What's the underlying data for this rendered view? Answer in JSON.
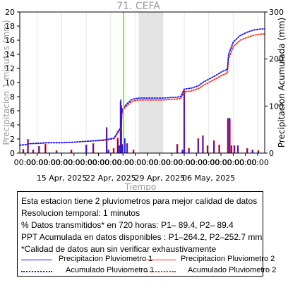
{
  "chart_data": {
    "type": "bar",
    "title": "71. CEFA",
    "xlabel": "Tiempo",
    "ylabel_left": "Precipitacion 1 minutos (mm)",
    "ylabel_right": "Precipitacion Acumulada (mm)",
    "ylim_left": [
      0,
      20
    ],
    "ylim_right": [
      0,
      300
    ],
    "yticks_left": [
      "0",
      "2",
      "4",
      "6",
      "8",
      "10",
      "12",
      "14",
      "16",
      "18",
      "20"
    ],
    "yticks_right": [
      "0",
      "100",
      "200",
      "300"
    ],
    "xlim": [
      "2025-04-09 00:00",
      "2025-05-14 00:00"
    ],
    "xtick_time_label": "00:00",
    "xtick_date_labels": [
      "15 Apr, 2025",
      "22 Apr, 2025",
      "29 Apr, 2025",
      "06 May, 2025"
    ],
    "marker_line": {
      "time": "2025-04-23 20:00",
      "color": "#7cff00"
    },
    "gap_region": {
      "start": "2025-04-26 00:00",
      "end": "2025-04-29 12:00",
      "color": "#e4e4e4"
    },
    "series": [
      {
        "name": "Precipitacion Pluviometro 1",
        "axis": "left",
        "color": "#1010ff",
        "bars": [
          [
            "2025-04-09 12:00",
            0.4
          ],
          [
            "2025-04-10 04:00",
            1.9
          ],
          [
            "2025-04-10 22:00",
            0.4
          ],
          [
            "2025-04-11 18:00",
            1.0
          ],
          [
            "2025-04-12 16:00",
            1.2
          ],
          [
            "2025-04-14 06:00",
            0.3
          ],
          [
            "2025-04-16 09:00",
            0.4
          ],
          [
            "2025-04-18 12:00",
            1.1
          ],
          [
            "2025-04-19 12:00",
            1.3
          ],
          [
            "2025-04-21 10:00",
            3.7
          ],
          [
            "2025-04-21 16:00",
            0.4
          ],
          [
            "2025-04-22 10:00",
            0.6
          ],
          [
            "2025-04-23 00:00",
            2.0
          ],
          [
            "2025-04-23 05:00",
            1.0
          ],
          [
            "2025-04-23 10:00",
            7.6
          ],
          [
            "2025-04-23 12:00",
            6.8
          ],
          [
            "2025-04-23 16:00",
            1.2
          ],
          [
            "2025-04-24 00:00",
            2.1
          ],
          [
            "2025-04-24 08:00",
            1.3
          ],
          [
            "2025-04-25 06:00",
            0.4
          ],
          [
            "2025-05-01 12:00",
            1.2
          ],
          [
            "2025-05-02 06:00",
            0.4
          ],
          [
            "2025-05-02 12:00",
            8.8
          ],
          [
            "2025-05-03 04:00",
            0.6
          ],
          [
            "2025-05-04 12:00",
            2.0
          ],
          [
            "2025-05-05 04:00",
            2.4
          ],
          [
            "2025-05-05 20:00",
            1.0
          ],
          [
            "2025-05-06 18:00",
            1.7
          ],
          [
            "2025-05-07 12:00",
            1.1
          ],
          [
            "2025-05-08 18:00",
            5.0
          ],
          [
            "2025-05-09 00:00",
            5.0
          ],
          [
            "2025-05-09 06:00",
            1.0
          ],
          [
            "2025-05-09 16:00",
            1.0
          ],
          [
            "2025-05-10 04:00",
            1.0
          ],
          [
            "2025-05-11 12:00",
            0.6
          ],
          [
            "2025-05-12 06:00",
            0.4
          ],
          [
            "2025-05-13 02:00",
            0.3
          ]
        ]
      },
      {
        "name": "Precipitacion Pluviometro 2",
        "axis": "left",
        "color": "#ff2a0a",
        "bars": [
          [
            "2025-04-09 12:00",
            0.6
          ],
          [
            "2025-04-10 04:00",
            2.0
          ],
          [
            "2025-04-10 22:00",
            0.5
          ],
          [
            "2025-04-11 18:00",
            1.0
          ],
          [
            "2025-04-12 16:00",
            1.3
          ],
          [
            "2025-04-14 06:00",
            0.4
          ],
          [
            "2025-04-16 09:00",
            0.5
          ],
          [
            "2025-04-18 12:00",
            1.2
          ],
          [
            "2025-04-19 12:00",
            1.4
          ],
          [
            "2025-04-21 10:00",
            3.5
          ],
          [
            "2025-04-21 16:00",
            0.5
          ],
          [
            "2025-04-22 10:00",
            0.7
          ],
          [
            "2025-04-23 00:00",
            2.2
          ],
          [
            "2025-04-23 05:00",
            1.1
          ],
          [
            "2025-04-23 10:00",
            7.3
          ],
          [
            "2025-04-23 12:00",
            6.5
          ],
          [
            "2025-04-23 16:00",
            1.3
          ],
          [
            "2025-04-24 00:00",
            2.0
          ],
          [
            "2025-04-24 08:00",
            1.4
          ],
          [
            "2025-04-25 06:00",
            0.5
          ],
          [
            "2025-05-01 12:00",
            1.3
          ],
          [
            "2025-05-02 06:00",
            0.5
          ],
          [
            "2025-05-02 12:00",
            8.9
          ],
          [
            "2025-05-03 04:00",
            0.7
          ],
          [
            "2025-05-04 12:00",
            2.1
          ],
          [
            "2025-05-05 04:00",
            2.5
          ],
          [
            "2025-05-05 20:00",
            1.1
          ],
          [
            "2025-05-06 18:00",
            1.8
          ],
          [
            "2025-05-07 12:00",
            1.2
          ],
          [
            "2025-05-08 18:00",
            4.8
          ],
          [
            "2025-05-09 00:00",
            4.9
          ],
          [
            "2025-05-09 06:00",
            1.1
          ],
          [
            "2025-05-09 16:00",
            1.1
          ],
          [
            "2025-05-10 04:00",
            1.1
          ],
          [
            "2025-05-11 12:00",
            0.7
          ],
          [
            "2025-05-12 06:00",
            0.5
          ],
          [
            "2025-05-13 02:00",
            0.4
          ]
        ]
      },
      {
        "name": "Acumulado Pluviometro 1",
        "axis": "right",
        "color": "#1010ff",
        "style": "dotted",
        "points": [
          [
            "2025-04-09 00:00",
            17
          ],
          [
            "2025-04-10 00:00",
            18
          ],
          [
            "2025-04-10 06:00",
            20
          ],
          [
            "2025-04-12 00:00",
            21
          ],
          [
            "2025-04-13 00:00",
            22
          ],
          [
            "2025-04-15 00:00",
            22
          ],
          [
            "2025-04-16 12:00",
            23
          ],
          [
            "2025-04-18 12:00",
            25
          ],
          [
            "2025-04-19 12:00",
            26
          ],
          [
            "2025-04-21 00:00",
            28
          ],
          [
            "2025-04-21 12:00",
            29
          ],
          [
            "2025-04-22 12:00",
            32
          ],
          [
            "2025-04-23 00:00",
            45
          ],
          [
            "2025-04-23 08:00",
            52
          ],
          [
            "2025-04-23 12:00",
            58
          ],
          [
            "2025-04-23 14:00",
            87
          ],
          [
            "2025-04-23 18:00",
            95
          ],
          [
            "2025-04-24 06:00",
            104
          ],
          [
            "2025-04-25 00:00",
            114
          ],
          [
            "2025-04-26 00:00",
            117
          ],
          [
            "2025-04-29 12:00",
            117
          ],
          [
            "2025-04-30 12:00",
            118
          ],
          [
            "2025-05-01 12:00",
            119
          ],
          [
            "2025-05-02 00:00",
            120
          ],
          [
            "2025-05-02 12:00",
            136
          ],
          [
            "2025-05-03 12:00",
            138
          ],
          [
            "2025-05-04 12:00",
            143
          ],
          [
            "2025-05-05 06:00",
            151
          ],
          [
            "2025-05-06 00:00",
            157
          ],
          [
            "2025-05-07 00:00",
            165
          ],
          [
            "2025-05-08 00:00",
            174
          ],
          [
            "2025-05-08 16:00",
            178
          ],
          [
            "2025-05-08 20:00",
            210
          ],
          [
            "2025-05-09 12:00",
            236
          ],
          [
            "2025-05-10 12:00",
            250
          ],
          [
            "2025-05-11 12:00",
            257
          ],
          [
            "2025-05-12 12:00",
            262
          ],
          [
            "2025-05-13 12:00",
            264
          ],
          [
            "2025-05-14 00:00",
            264
          ]
        ]
      },
      {
        "name": "Acumulado Pluviometro 2",
        "axis": "right",
        "color": "#ff2a0a",
        "style": "dotted",
        "points": [
          [
            "2025-04-09 00:00",
            17
          ],
          [
            "2025-04-10 00:00",
            18
          ],
          [
            "2025-04-10 06:00",
            20
          ],
          [
            "2025-04-12 00:00",
            21
          ],
          [
            "2025-04-13 00:00",
            22
          ],
          [
            "2025-04-15 00:00",
            22
          ],
          [
            "2025-04-16 12:00",
            23
          ],
          [
            "2025-04-18 12:00",
            25
          ],
          [
            "2025-04-19 12:00",
            26
          ],
          [
            "2025-04-21 00:00",
            27
          ],
          [
            "2025-04-21 12:00",
            28
          ],
          [
            "2025-04-22 12:00",
            31
          ],
          [
            "2025-04-23 00:00",
            43
          ],
          [
            "2025-04-23 08:00",
            50
          ],
          [
            "2025-04-23 12:00",
            56
          ],
          [
            "2025-04-23 14:00",
            84
          ],
          [
            "2025-04-23 18:00",
            92
          ],
          [
            "2025-04-24 06:00",
            100
          ],
          [
            "2025-04-25 00:00",
            110
          ],
          [
            "2025-04-26 00:00",
            113
          ],
          [
            "2025-04-29 12:00",
            113
          ],
          [
            "2025-04-30 12:00",
            114
          ],
          [
            "2025-05-01 12:00",
            115
          ],
          [
            "2025-05-02 00:00",
            116
          ],
          [
            "2025-05-02 12:00",
            130
          ],
          [
            "2025-05-03 12:00",
            132
          ],
          [
            "2025-05-04 12:00",
            137
          ],
          [
            "2025-05-05 06:00",
            144
          ],
          [
            "2025-05-06 00:00",
            150
          ],
          [
            "2025-05-07 00:00",
            158
          ],
          [
            "2025-05-08 00:00",
            166
          ],
          [
            "2025-05-08 16:00",
            170
          ],
          [
            "2025-05-08 20:00",
            201
          ],
          [
            "2025-05-09 12:00",
            226
          ],
          [
            "2025-05-10 12:00",
            240
          ],
          [
            "2025-05-11 12:00",
            246
          ],
          [
            "2025-05-12 12:00",
            251
          ],
          [
            "2025-05-13 12:00",
            253
          ],
          [
            "2025-05-14 00:00",
            253
          ]
        ]
      }
    ]
  },
  "info": {
    "line1": "Esta estacion tiene 2 pluviometros para mejor calidad de datos",
    "line2": "Resolucion temporal: 1 minutos",
    "line3": "% Datos transmitidos* en 720 horas: P1– 89.4, P2– 89.4",
    "line4": "PPT Acumulada en datos disponibles : P1–264.2, P2–252.7 mm",
    "line5": "*Calidad de datos aun sin verificar exhaustivamente"
  },
  "legend": {
    "p1_rain": "Precipitacion Pluviometro 1",
    "p2_rain": "Precipitacion Pluviometro 2",
    "p1_acc": "Acumulado Pluviometro 1",
    "p2_acc": "Acumulado Pluviometro 2"
  }
}
